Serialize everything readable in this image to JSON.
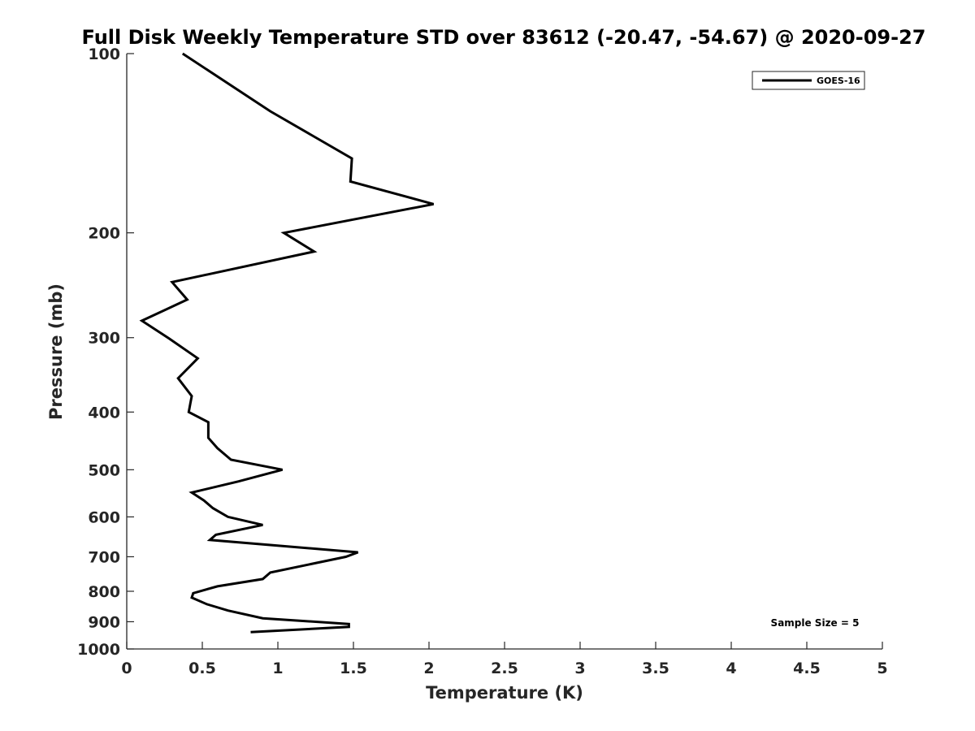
{
  "chart_data": {
    "type": "line",
    "title": "Full Disk Weekly Temperature STD over 83612 (-20.47, -54.67) @ 2020-09-27",
    "xlabel": "Temperature (K)",
    "ylabel": "Pressure (mb)",
    "xlim": [
      0,
      5
    ],
    "ylim": [
      100,
      1000
    ],
    "y_scale": "log",
    "y_reversed": true,
    "grid": false,
    "legend_position": "top-right",
    "x_ticks": [
      "0",
      "0.5",
      "1",
      "1.5",
      "2",
      "2.5",
      "3",
      "3.5",
      "4",
      "4.5",
      "5"
    ],
    "y_ticks": [
      "100",
      "200",
      "300",
      "400",
      "500",
      "600",
      "700",
      "800",
      "900",
      "1000"
    ],
    "annotation": "Sample Size = 5",
    "series": [
      {
        "name": "GOES-16",
        "color": "#000000",
        "points": [
          [
            0.37,
            100
          ],
          [
            0.95,
            125
          ],
          [
            1.49,
            150
          ],
          [
            1.48,
            164
          ],
          [
            2.03,
            179
          ],
          [
            1.04,
            200
          ],
          [
            1.24,
            215
          ],
          [
            0.3,
            242
          ],
          [
            0.4,
            259
          ],
          [
            0.1,
            281
          ],
          [
            0.28,
            301
          ],
          [
            0.47,
            325
          ],
          [
            0.34,
            351
          ],
          [
            0.43,
            376
          ],
          [
            0.42,
            388
          ],
          [
            0.41,
            400
          ],
          [
            0.54,
            416
          ],
          [
            0.54,
            442
          ],
          [
            0.6,
            460
          ],
          [
            0.69,
            481
          ],
          [
            1.03,
            500
          ],
          [
            0.74,
            523
          ],
          [
            0.43,
            546
          ],
          [
            0.51,
            563
          ],
          [
            0.57,
            580
          ],
          [
            0.67,
            600
          ],
          [
            0.9,
            619
          ],
          [
            0.59,
            643
          ],
          [
            0.55,
            656
          ],
          [
            1.53,
            688
          ],
          [
            1.45,
            700
          ],
          [
            0.95,
            744
          ],
          [
            0.9,
            763
          ],
          [
            0.6,
            785
          ],
          [
            0.44,
            806
          ],
          [
            0.43,
            820
          ],
          [
            0.53,
            841
          ],
          [
            0.67,
            862
          ],
          [
            0.9,
            888
          ],
          [
            1.47,
            908
          ],
          [
            1.47,
            918
          ],
          [
            0.82,
            937
          ]
        ]
      }
    ]
  }
}
